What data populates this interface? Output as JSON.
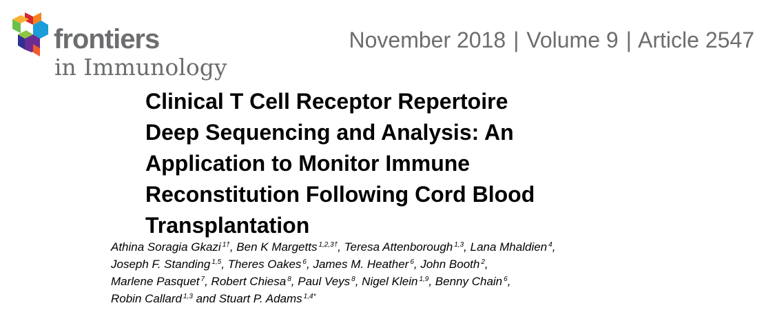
{
  "header": {
    "brand": "frontiers",
    "journal": "in Immunology",
    "issue": {
      "date": "November 2018",
      "volume": "Volume 9",
      "article": "Article 2547",
      "separator": "|"
    },
    "logo_colors": [
      "#d6262f",
      "#f58220",
      "#fbb034",
      "#6cc04a",
      "#1b9dd9",
      "#2e3192",
      "#8dc63f"
    ]
  },
  "article": {
    "title_lines": [
      "Clinical T Cell Receptor Repertoire",
      "Deep Sequencing and Analysis: An",
      "Application to Monitor Immune",
      "Reconstitution Following Cord Blood",
      "Transplantation"
    ],
    "author_lines": [
      [
        {
          "name": "Athina Soragia Gkazi",
          "sup": "1†",
          "sep": ", "
        },
        {
          "name": "Ben K Margetts",
          "sup": "1,2,3†",
          "sep": ", "
        },
        {
          "name": "Teresa Attenborough",
          "sup": "1,3",
          "sep": ", "
        },
        {
          "name": "Lana Mhaldien",
          "sup": "4",
          "sep": ","
        }
      ],
      [
        {
          "name": "Joseph F. Standing",
          "sup": "1,5",
          "sep": ", "
        },
        {
          "name": "Theres Oakes",
          "sup": "6",
          "sep": ", "
        },
        {
          "name": "James M. Heather",
          "sup": "6",
          "sep": ", "
        },
        {
          "name": "John Booth",
          "sup": "2",
          "sep": ","
        }
      ],
      [
        {
          "name": "Marlene Pasquet",
          "sup": "7",
          "sep": ", "
        },
        {
          "name": "Robert Chiesa",
          "sup": "8",
          "sep": ", "
        },
        {
          "name": "Paul Veys",
          "sup": "8",
          "sep": ", "
        },
        {
          "name": "Nigel Klein",
          "sup": "1,9",
          "sep": ", "
        },
        {
          "name": "Benny Chain",
          "sup": "6",
          "sep": ","
        }
      ],
      [
        {
          "name": "Robin Callard",
          "sup": "1,3",
          "sep": " and "
        },
        {
          "name": "Stuart P. Adams",
          "sup": "1,4*",
          "sep": ""
        }
      ]
    ]
  }
}
